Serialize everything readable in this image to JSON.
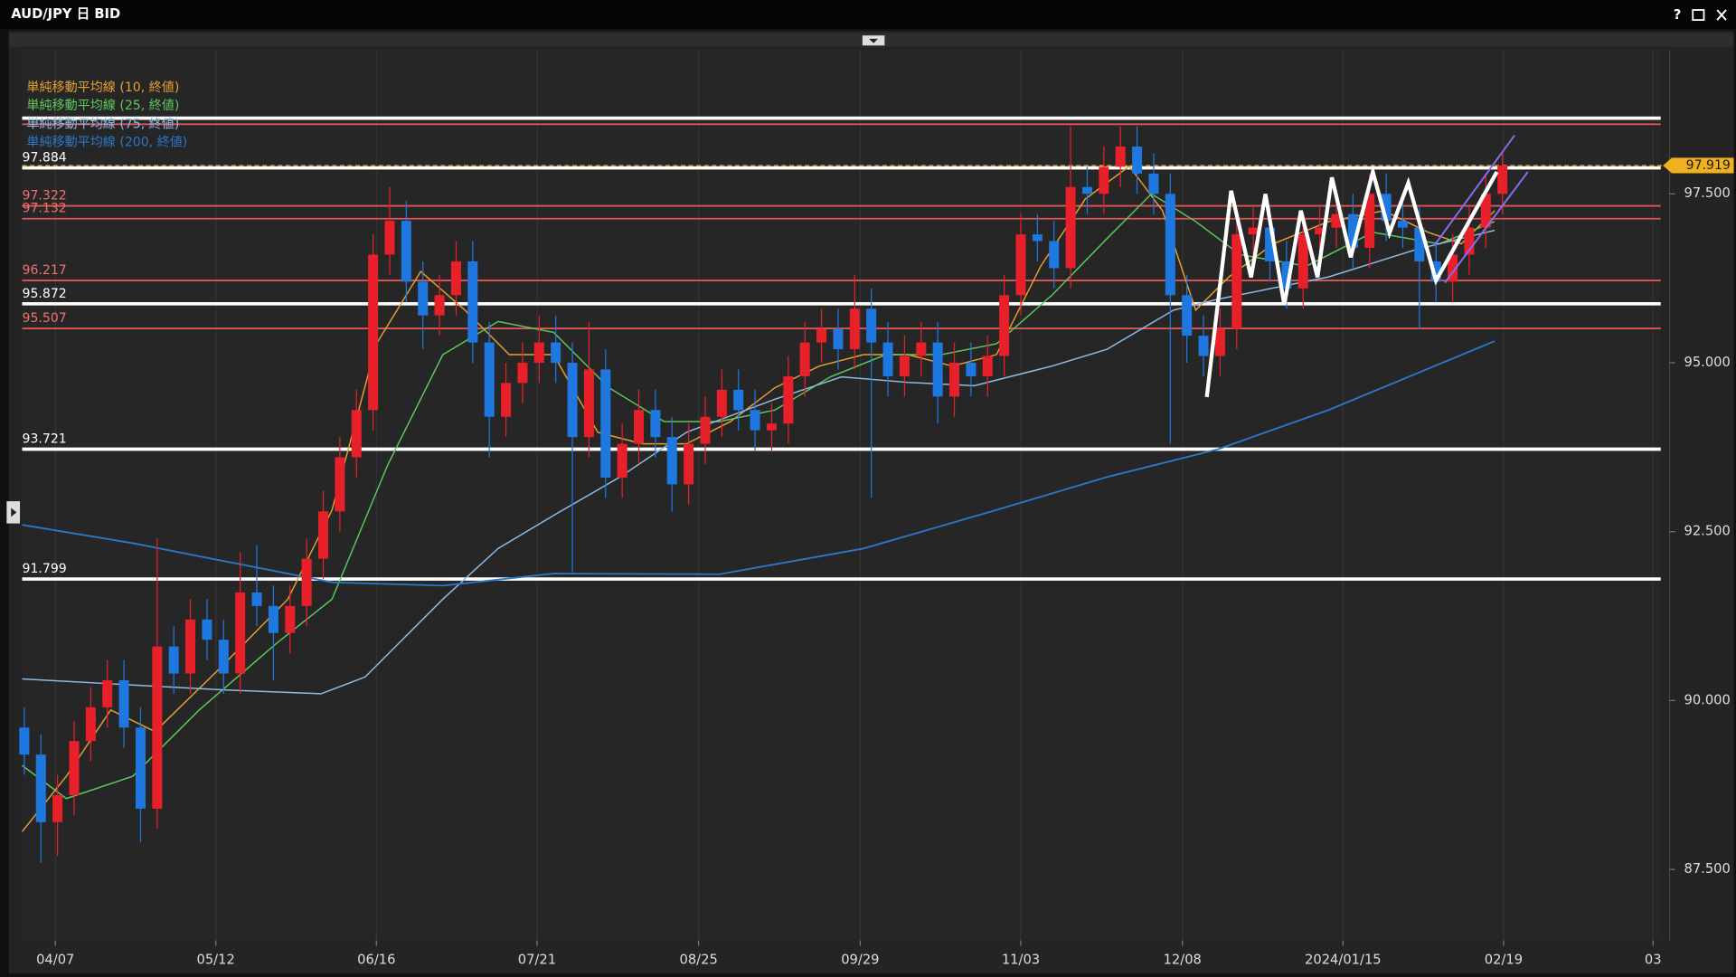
{
  "window": {
    "title": "AUD/JPY 日 BID",
    "help": "?"
  },
  "chart_data": {
    "type": "candlestick",
    "up_color": "#e8202a",
    "down_color": "#1f78e0",
    "grid": true,
    "xlim": [
      -0.13,
      98.53
    ],
    "ylim": [
      86.45,
      99.63
    ],
    "xticks": [
      {
        "value": 1.87,
        "label": "04/07"
      },
      {
        "value": 11.53,
        "label": "05/12"
      },
      {
        "value": 21.2,
        "label": "06/16"
      },
      {
        "value": 30.87,
        "label": "07/21"
      },
      {
        "value": 40.6,
        "label": "08/25"
      },
      {
        "value": 50.33,
        "label": "09/29"
      },
      {
        "value": 60,
        "label": "11/03"
      },
      {
        "value": 69.73,
        "label": "12/08"
      },
      {
        "value": 79.4,
        "label": "2024/01/15"
      },
      {
        "value": 89.07,
        "label": "02/19"
      },
      {
        "value": 98.07,
        "label": "03"
      }
    ],
    "yticks": [
      {
        "value": 87.5,
        "label": "87.500"
      },
      {
        "value": 90,
        "label": "90.000"
      },
      {
        "value": 92.5,
        "label": "92.500"
      },
      {
        "value": 95,
        "label": "95.000"
      },
      {
        "value": 97.5,
        "label": "97.500"
      }
    ],
    "open": [
      89.6,
      89.2,
      88.2,
      88.6,
      89.4,
      89.9,
      90.3,
      89.6,
      88.4,
      90.8,
      90.4,
      91.2,
      90.9,
      90.4,
      91.6,
      91.4,
      91.0,
      91.4,
      92.1,
      92.8,
      93.6,
      94.3,
      96.6,
      97.1,
      96.2,
      95.7,
      96.0,
      96.5,
      95.3,
      94.2,
      94.7,
      95.0,
      95.3,
      95.0,
      93.9,
      94.9,
      93.3,
      93.8,
      94.3,
      93.9,
      93.2,
      93.8,
      94.2,
      94.6,
      94.3,
      94.0,
      94.1,
      94.8,
      95.3,
      95.5,
      95.2,
      95.8,
      95.3,
      94.8,
      95.1,
      95.3,
      94.5,
      95.0,
      94.8,
      95.1,
      96.0,
      96.9,
      96.8,
      96.4,
      97.6,
      97.5,
      97.9,
      98.2,
      97.8,
      97.5,
      96.0,
      95.4,
      95.1,
      95.5,
      96.9,
      97.0,
      96.5,
      96.1,
      96.9,
      97.0,
      97.2,
      96.7,
      97.5,
      97.1,
      97.0,
      96.5,
      96.2,
      96.6,
      97.0,
      97.5
    ],
    "high": [
      89.9,
      89.5,
      88.9,
      89.7,
      90.2,
      90.6,
      90.6,
      89.9,
      92.4,
      91.1,
      91.5,
      91.5,
      91.2,
      92.2,
      92.3,
      91.7,
      91.7,
      92.4,
      93.1,
      93.9,
      94.6,
      96.9,
      97.6,
      97.4,
      96.5,
      96.3,
      96.8,
      96.8,
      95.6,
      95.0,
      95.3,
      95.7,
      95.7,
      95.3,
      95.6,
      95.2,
      94.1,
      94.6,
      94.6,
      94.2,
      94.1,
      94.5,
      94.9,
      94.9,
      94.6,
      94.4,
      95.1,
      95.6,
      95.8,
      95.8,
      96.3,
      96.1,
      95.6,
      95.4,
      95.6,
      95.6,
      95.3,
      95.3,
      95.4,
      96.3,
      97.2,
      97.2,
      97.1,
      98.5,
      97.9,
      98.2,
      98.5,
      98.5,
      98.1,
      97.8,
      96.3,
      95.7,
      95.8,
      97.2,
      97.3,
      97.3,
      96.8,
      97.2,
      97.3,
      97.5,
      97.5,
      97.8,
      97.8,
      97.4,
      97.3,
      96.8,
      96.9,
      97.3,
      97.8,
      98.1
    ],
    "low": [
      88.9,
      87.6,
      87.7,
      88.3,
      89.1,
      89.6,
      89.3,
      87.9,
      88.1,
      90.1,
      90.1,
      90.6,
      90.1,
      90.1,
      91.1,
      90.3,
      90.7,
      91.1,
      91.8,
      92.5,
      93.3,
      94.0,
      96.3,
      95.9,
      95.2,
      95.4,
      95.7,
      95.0,
      93.6,
      93.9,
      94.4,
      94.7,
      94.7,
      91.9,
      93.6,
      93.0,
      93.0,
      93.5,
      93.6,
      92.8,
      92.9,
      93.5,
      93.9,
      94.0,
      93.7,
      93.7,
      93.8,
      94.5,
      95.0,
      94.9,
      94.9,
      93.0,
      94.5,
      94.5,
      94.8,
      94.1,
      94.2,
      94.5,
      94.5,
      94.8,
      95.7,
      96.5,
      96.1,
      96.1,
      97.2,
      97.2,
      97.6,
      97.5,
      97.2,
      93.8,
      95.0,
      94.8,
      94.8,
      95.2,
      96.6,
      96.2,
      95.8,
      95.8,
      96.6,
      96.7,
      96.4,
      96.4,
      96.8,
      96.7,
      95.5,
      95.9,
      95.9,
      96.3,
      96.7,
      97.2
    ],
    "close": [
      89.2,
      88.2,
      88.6,
      89.4,
      89.9,
      90.3,
      89.6,
      88.4,
      90.8,
      90.4,
      91.2,
      90.9,
      90.4,
      91.6,
      91.4,
      91.0,
      91.4,
      92.1,
      92.8,
      93.6,
      94.3,
      96.6,
      97.1,
      96.2,
      95.7,
      96.0,
      96.5,
      95.3,
      94.2,
      94.7,
      95.0,
      95.3,
      95.0,
      93.9,
      94.9,
      93.3,
      93.8,
      94.3,
      93.9,
      93.2,
      93.8,
      94.2,
      94.6,
      94.3,
      94.0,
      94.1,
      94.8,
      95.3,
      95.5,
      95.2,
      95.8,
      95.3,
      94.8,
      95.1,
      95.3,
      94.5,
      95.0,
      94.8,
      95.1,
      96.0,
      96.9,
      96.8,
      96.4,
      97.6,
      97.5,
      97.9,
      98.2,
      97.8,
      97.5,
      96.0,
      95.4,
      95.1,
      95.5,
      96.9,
      97.0,
      96.5,
      96.1,
      96.9,
      97.0,
      97.2,
      96.7,
      97.5,
      97.1,
      97.0,
      96.5,
      96.2,
      96.6,
      97.0,
      97.5,
      97.919
    ],
    "series": [
      {
        "name": "単純移動平均線 (10, 終値)",
        "color": "#e5a030",
        "x": [
          -0.13,
          2.53,
          5.2,
          7.87,
          11.87,
          15.87,
          18.53,
          21.2,
          23.87,
          26.53,
          29.2,
          31.87,
          34.53,
          37.2,
          39.87,
          42.53,
          45.2,
          47.87,
          50.53,
          53.2,
          55.87,
          58.53,
          61.2,
          63.87,
          66.53,
          68.53,
          70.53,
          72.53,
          75.2,
          78.53,
          81.87,
          84.53,
          86.53,
          88.53
        ],
        "values": [
          88.06,
          88.88,
          89.86,
          89.54,
          90.5,
          91.5,
          92.82,
          95.28,
          96.35,
          95.78,
          95.12,
          95.12,
          93.97,
          93.8,
          93.8,
          94.13,
          94.63,
          94.95,
          95.12,
          95.12,
          94.95,
          95.12,
          96.43,
          97.42,
          97.91,
          97.25,
          95.78,
          96.27,
          96.76,
          97.09,
          97.25,
          96.93,
          96.76,
          97.25
        ]
      },
      {
        "name": "単純移動平均線 (25, 終値)",
        "color": "#5cc95c",
        "x": [
          -0.13,
          2.53,
          6.53,
          10.53,
          15.2,
          18.53,
          21.87,
          25.2,
          28.53,
          31.87,
          35.2,
          38.53,
          41.87,
          45.2,
          48.53,
          51.87,
          55.2,
          58.53,
          61.87,
          65.2,
          67.87,
          70.53,
          73.2,
          77.2,
          81.2,
          85.2,
          88.53
        ],
        "values": [
          89.04,
          88.55,
          88.88,
          89.86,
          90.85,
          91.5,
          93.48,
          95.12,
          95.61,
          95.45,
          94.63,
          94.13,
          94.13,
          94.3,
          94.79,
          95.12,
          95.12,
          95.28,
          96.0,
          96.84,
          97.5,
          97.09,
          96.6,
          96.43,
          96.93,
          96.76,
          97.09
        ]
      },
      {
        "name": "単純移動平均線 (75, 終値)",
        "color": "#8dbde6",
        "x": [
          -0.13,
          6.53,
          11.87,
          17.87,
          20.53,
          25.2,
          28.53,
          31.87,
          35.87,
          39.87,
          45.2,
          49.2,
          53.2,
          57.2,
          61.87,
          65.2,
          69.2,
          71.87,
          78.53,
          83.87,
          88.53
        ],
        "values": [
          90.32,
          90.23,
          90.16,
          90.1,
          90.35,
          91.5,
          92.25,
          92.74,
          93.31,
          93.97,
          94.46,
          94.79,
          94.71,
          94.66,
          94.95,
          95.2,
          95.78,
          95.94,
          96.27,
          96.68,
          96.96
        ]
      },
      {
        "name": "単純移動平均線 (200, 終値)",
        "color": "#2a78c8",
        "x": [
          -0.13,
          6.53,
          18.53,
          25.2,
          31.87,
          41.87,
          50.53,
          58.53,
          65.2,
          71.87,
          78.53,
          88.53
        ],
        "values": [
          92.6,
          92.33,
          91.75,
          91.7,
          91.88,
          91.87,
          92.25,
          92.82,
          93.31,
          93.72,
          94.3,
          95.32
        ]
      }
    ],
    "levels": [
      {
        "value": 97.884,
        "color": "#ffffff"
      },
      {
        "value": 97.322,
        "color": "#e05555"
      },
      {
        "value": 97.132,
        "color": "#e05555"
      },
      {
        "value": 96.217,
        "color": "#e05555"
      },
      {
        "value": 95.872,
        "color": "#ffffff"
      },
      {
        "value": 95.507,
        "color": "#e05555"
      },
      {
        "value": 93.721,
        "color": "#ffffff"
      },
      {
        "value": 91.799,
        "color": "#ffffff"
      }
    ],
    "unlabeled_levels": [
      {
        "value": 98.62,
        "color": "#ffffff"
      },
      {
        "value": 98.53,
        "color": "#e05555"
      }
    ],
    "current_price": {
      "value": 97.919,
      "color": "#f0b020"
    }
  }
}
